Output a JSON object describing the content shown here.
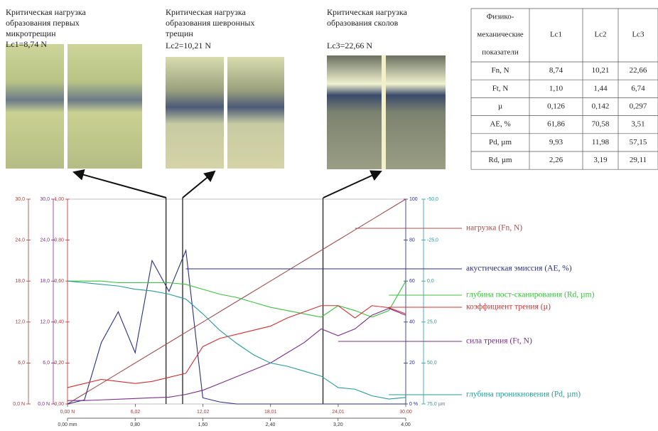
{
  "captions": [
    {
      "lines": [
        "Критическая нагрузка",
        "образования первых",
        "микротрещин"
      ],
      "value": "Lc1=8,74 N"
    },
    {
      "lines": [
        "Критическая нагрузка",
        "образования шевронных",
        "трещин"
      ],
      "value": "Lc2=10,21 N"
    },
    {
      "lines": [
        "Критическая нагрузка",
        "образования сколов"
      ],
      "value": "Lc3=22,66 N"
    }
  ],
  "table": {
    "header": [
      [
        "Физико-",
        "механические",
        "показатели"
      ],
      "Lc1",
      "Lc2",
      "Lc3"
    ],
    "rows": [
      [
        "Fn, N",
        "8,74",
        "10,21",
        "22,66"
      ],
      [
        "Ft, N",
        "1,10",
        "1,44",
        "6,74"
      ],
      [
        "µ",
        "0,126",
        "0,142",
        "0,297"
      ],
      [
        "AE, %",
        "61,86",
        "70,58",
        "3,51"
      ],
      [
        "Pd, µm",
        "9,93",
        "11,98",
        "57,15"
      ],
      [
        "Rd, µm",
        "2,26",
        "3,19",
        "29,11"
      ]
    ]
  },
  "chart_data": {
    "type": "line",
    "x": [
      0,
      1.5,
      3,
      4.5,
      6,
      7.5,
      9,
      10.5,
      12,
      13.5,
      15,
      16.5,
      18,
      19.5,
      21,
      22.5,
      24,
      25.5,
      27,
      28.5,
      30
    ],
    "xlim": [
      0,
      30
    ],
    "xticks": [
      {
        "value": 0,
        "label": "0,00 N"
      },
      {
        "value": 6.02,
        "label": "6,02"
      },
      {
        "value": 12.02,
        "label": "12,02"
      },
      {
        "value": 18.01,
        "label": "18,01"
      },
      {
        "value": 24.01,
        "label": "24,01"
      },
      {
        "value": 30,
        "label": "30,00"
      }
    ],
    "x2lim": [
      0,
      4
    ],
    "x2ticks": [
      {
        "value": 0,
        "label": "0,00 mm"
      },
      {
        "value": 0.8,
        "label": "0,80"
      },
      {
        "value": 1.6,
        "label": "1,60"
      },
      {
        "value": 2.4,
        "label": "2,40"
      },
      {
        "value": 3.2,
        "label": "3,20"
      },
      {
        "value": 4,
        "label": "4,00"
      }
    ],
    "axes": [
      {
        "color": "#a0403c",
        "ylim": [
          0,
          30
        ],
        "yticks": [
          {
            "value": 0,
            "label": "0,0 N"
          },
          {
            "value": 6,
            "label": "6,0"
          },
          {
            "value": 12,
            "label": "12,0"
          },
          {
            "value": 18,
            "label": "18,0"
          },
          {
            "value": 24,
            "label": "24,0"
          },
          {
            "value": 30,
            "label": "30,0"
          }
        ]
      },
      {
        "color": "#7a2f8a",
        "ylim": [
          0,
          30
        ],
        "yticks": [
          {
            "value": 0,
            "label": "0,0 N"
          },
          {
            "value": 6,
            "label": "6,0"
          },
          {
            "value": 12,
            "label": "12,0"
          },
          {
            "value": 18,
            "label": "18,0"
          },
          {
            "value": 24,
            "label": "24,0"
          },
          {
            "value": 30,
            "label": "30,0"
          }
        ]
      },
      {
        "color": "#d03030",
        "ylim": [
          0,
          1
        ],
        "yticks": [
          {
            "value": 0,
            "label": "0,00"
          },
          {
            "value": 0.2,
            "label": "0,20"
          },
          {
            "value": 0.4,
            "label": "0,40"
          },
          {
            "value": 0.6,
            "label": "0,60"
          },
          {
            "value": 0.8,
            "label": "0,80"
          },
          {
            "value": 1,
            "label": "1,00"
          }
        ]
      },
      {
        "color": "#2b2f80",
        "ylim": [
          0,
          100
        ],
        "yticks": [
          {
            "value": 0,
            "label": "0 %"
          },
          20,
          40,
          60,
          80,
          100
        ]
      },
      {
        "color": "#2a9a9a",
        "ylim": [
          75,
          -50
        ],
        "yticks": [
          {
            "value": 75,
            "label": "75,0 µm"
          },
          {
            "value": 50,
            "label": "50,0"
          },
          {
            "value": 25,
            "label": "25,0"
          },
          {
            "value": 0,
            "label": "0,0"
          },
          {
            "value": -25,
            "label": "-25,0"
          },
          {
            "value": -50,
            "label": "-50,0"
          }
        ]
      }
    ],
    "markers": [
      8.74,
      10.21,
      22.66
    ],
    "series": [
      {
        "name": "нагрузка (Fn, N)",
        "color": "#a05050",
        "axis": 0,
        "values": [
          0,
          1.5,
          3,
          4.5,
          6,
          7.5,
          9,
          10.5,
          12,
          13.5,
          15,
          16.5,
          18,
          19.5,
          21,
          22.5,
          24,
          25.5,
          27,
          28.5,
          30
        ]
      },
      {
        "name": "акустическая эмиссия (AE, %)",
        "color": "#2b2f80",
        "axis": 3,
        "values": [
          0,
          2,
          30,
          45,
          25,
          70,
          55,
          75,
          3,
          1,
          0,
          0,
          0,
          0,
          0,
          0,
          0,
          0,
          0,
          0,
          0
        ]
      },
      {
        "name": "глубина пост-сканирования (Rd, µm)",
        "color": "#3cc040",
        "axis": 4,
        "values": [
          0,
          0,
          0,
          1,
          1,
          1,
          1,
          2,
          5,
          8,
          10,
          13,
          16,
          18,
          20,
          22,
          15,
          18,
          22,
          18,
          0
        ]
      },
      {
        "name": "коэффициент трения (µ)",
        "color": "#d03030",
        "axis": 2,
        "values": [
          0.08,
          0.1,
          0.12,
          0.11,
          0.1,
          0.11,
          0.13,
          0.15,
          0.28,
          0.32,
          0.34,
          0.36,
          0.38,
          0.42,
          0.45,
          0.48,
          0.48,
          0.42,
          0.48,
          0.47,
          0.44
        ]
      },
      {
        "name": "сила трения (Ft, N)",
        "color": "#7a2f8a",
        "axis": 0,
        "values": [
          0.5,
          0.5,
          0.6,
          0.7,
          0.8,
          0.9,
          1,
          1.4,
          2,
          3,
          4,
          5,
          6,
          7.5,
          9,
          11,
          10,
          11,
          13,
          14,
          13
        ]
      },
      {
        "name": "глубина проникновения (Pd, µm)",
        "color": "#2a9a9a",
        "axis": 4,
        "values": [
          0,
          1,
          2,
          3,
          5,
          6,
          8,
          11,
          20,
          30,
          38,
          45,
          50,
          52,
          55,
          58,
          65,
          66,
          70,
          72,
          71
        ]
      }
    ]
  }
}
